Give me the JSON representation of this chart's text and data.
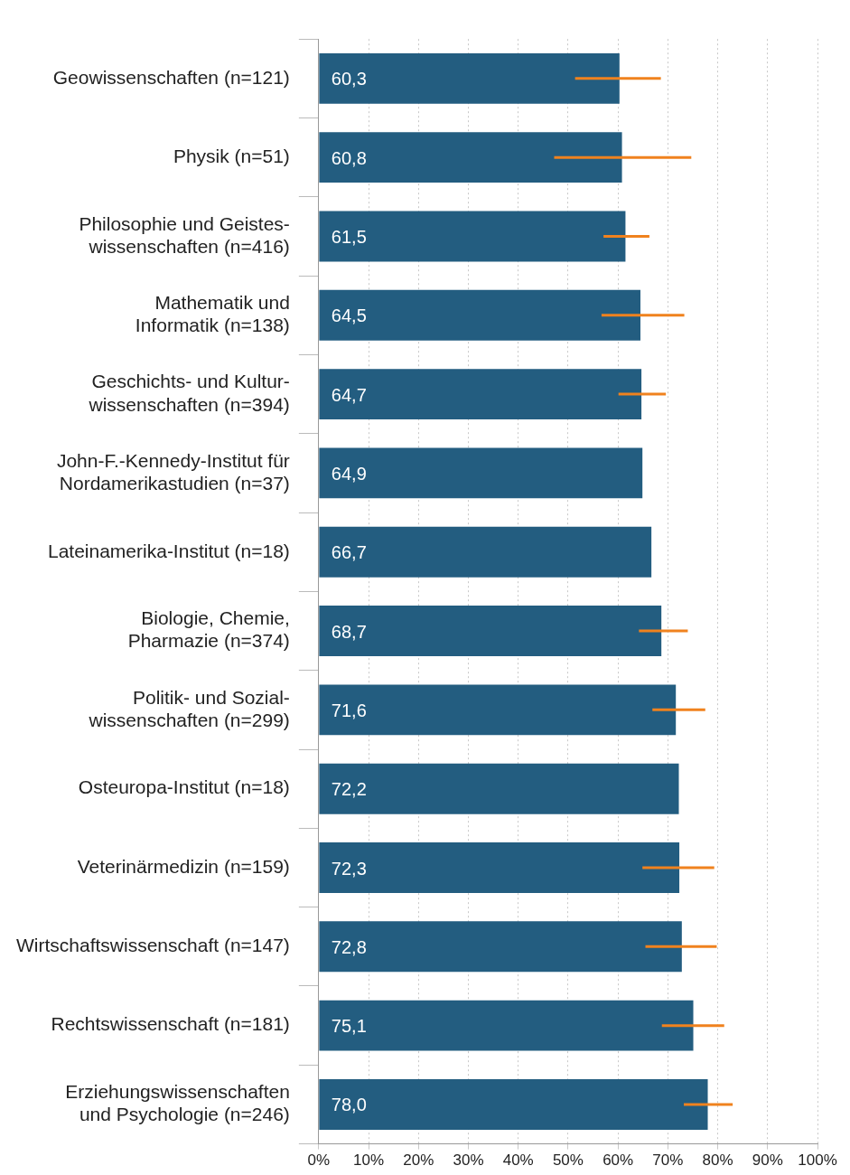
{
  "chart_data": {
    "type": "bar",
    "orientation": "horizontal",
    "categories": [
      "Geowissenschaften (n=121)",
      "Physik (n=51)",
      "Philosophie und Geistes-\nwissenschaften (n=416)",
      "Mathematik und\nInformatik (n=138)",
      "Geschichts- und Kultur-\nwissenschaften (n=394)",
      "John-F.-Kennedy-Institut für\nNordamerikastudien (n=37)",
      "Lateinamerika-Institut (n=18)",
      "Biologie, Chemie,\nPharmazie (n=374)",
      "Politik- und Sozial-\nwissenschaften (n=299)",
      "Osteuropa-Institut (n=18)",
      "Veterinärmedizin (n=159)",
      "Wirtschaftswissenschaft (n=147)",
      "Rechtswissenschaft (n=181)",
      "Erziehungswissenschaften\nund Psychologie (n=246)"
    ],
    "values": [
      60.3,
      60.8,
      61.5,
      64.5,
      64.7,
      64.9,
      66.7,
      68.7,
      71.6,
      72.2,
      72.3,
      72.8,
      75.1,
      78.0
    ],
    "value_labels": [
      "60,3",
      "60,8",
      "61,5",
      "64,5",
      "64,7",
      "64,9",
      "66,7",
      "68,7",
      "71,6",
      "72,2",
      "72,3",
      "72,8",
      "75,1",
      "78,0"
    ],
    "errors": [
      [
        51.4,
        68.6
      ],
      [
        47.2,
        74.7
      ],
      [
        57.1,
        66.3
      ],
      [
        56.7,
        73.3
      ],
      [
        60.1,
        69.6
      ],
      null,
      null,
      [
        64.2,
        74.0
      ],
      [
        66.9,
        77.5
      ],
      null,
      [
        64.9,
        79.3
      ],
      [
        65.5,
        79.8
      ],
      [
        68.8,
        81.3
      ],
      [
        73.2,
        83.0
      ]
    ],
    "color": "#235d80",
    "xlim": [
      0,
      100
    ],
    "xticks": [
      {
        "value": 0,
        "label": "0%"
      },
      {
        "value": 10,
        "label": "10%"
      },
      {
        "value": 20,
        "label": "20%"
      },
      {
        "value": 30,
        "label": "30%"
      },
      {
        "value": 40,
        "label": "40%"
      },
      {
        "value": 50,
        "label": "50%"
      },
      {
        "value": 60,
        "label": "60%"
      },
      {
        "value": 70,
        "label": "70%"
      },
      {
        "value": 80,
        "label": "80%"
      },
      {
        "value": 90,
        "label": "90%"
      },
      {
        "value": 100,
        "label": "100%"
      }
    ],
    "grid": "x",
    "legend": false
  }
}
